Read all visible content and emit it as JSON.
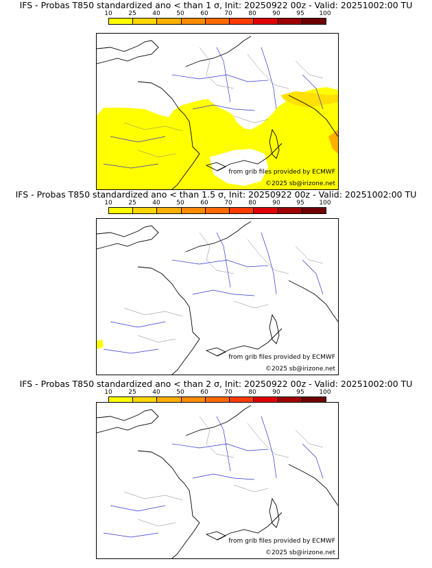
{
  "colorbar": {
    "ticks": [
      "10",
      "25",
      "40",
      "50",
      "60",
      "70",
      "80",
      "90",
      "95",
      "100"
    ],
    "colors": [
      "#ffff00",
      "#ffd700",
      "#ffb000",
      "#ff8c00",
      "#ff6a00",
      "#ff3c00",
      "#e00000",
      "#a00000",
      "#700000"
    ]
  },
  "panels": [
    {
      "title": "IFS - Probas T850  standardized ano < than 1 σ, Init: 20250922 00z - Valid: 20251002:00 TU",
      "source": "from grib files provided by ECMWF",
      "copyright": "©2025 sb@irizone.net"
    },
    {
      "title": "IFS - Probas T850  standardized ano < than 1.5 σ, Init: 20250922 00z - Valid: 20251002:00 TU",
      "source": "from grib files provided by ECMWF",
      "copyright": "©2025 sb@irizone.net"
    },
    {
      "title": "IFS - Probas T850  standardized ano < than 2 σ, Init: 20250922 00z - Valid: 20251002:00 TU",
      "source": "from grib files provided by ECMWF",
      "copyright": "©2025 sb@irizone.net"
    }
  ]
}
